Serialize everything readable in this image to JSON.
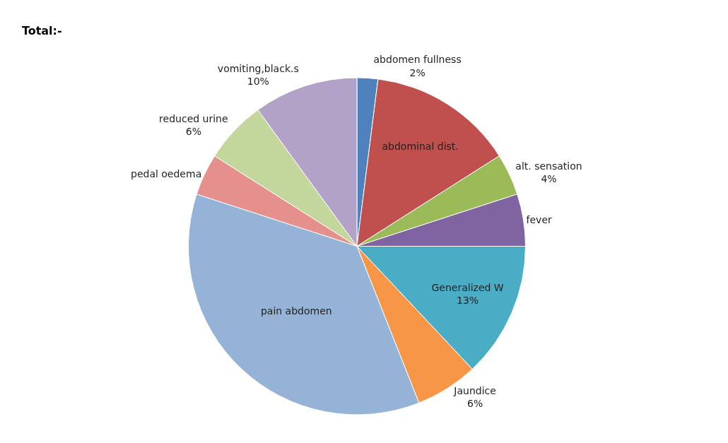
{
  "chart_data": {
    "type": "pie",
    "title": "Total:-",
    "categories": [
      "abdomen fullness",
      "abdominal dist.",
      "alt. sensation",
      "fever",
      "Generalized W",
      "Jaundice",
      "pain abdomen",
      "pedal oedema",
      "reduced urine",
      "vomiting,black.s"
    ],
    "values": [
      2,
      14,
      4,
      5,
      13,
      6,
      36,
      4,
      6,
      10
    ],
    "value_labels": [
      "2%",
      null,
      "4%",
      null,
      "13%",
      "6%",
      null,
      null,
      "6%",
      "10%"
    ],
    "colors": [
      "#4f81bd",
      "#c0504d",
      "#9bbb59",
      "#8064a2",
      "#4bacc6",
      "#f79646",
      "#95b3d7",
      "#e6908e",
      "#c3d69b",
      "#b3a2c7"
    ],
    "legend": false
  }
}
